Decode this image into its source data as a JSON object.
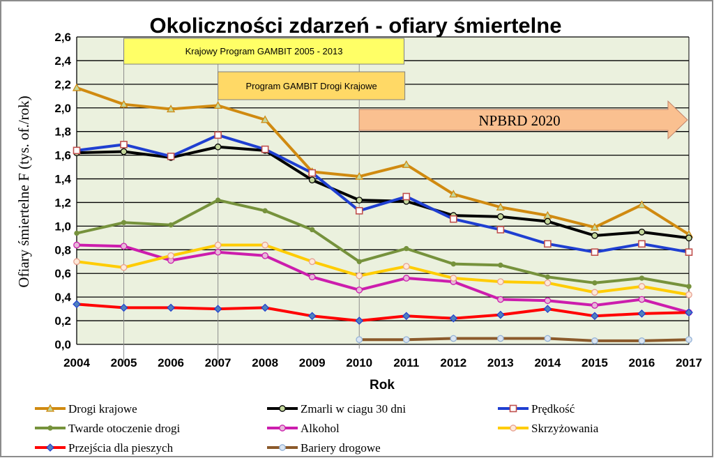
{
  "chart_data": {
    "type": "line",
    "title": "Okoliczności zdarzeń - ofiary śmiertelne",
    "xlabel": "Rok",
    "ylabel": "Ofiary śmiertelne F (tys. of./rok)",
    "ylim": [
      0,
      2.6
    ],
    "ytick_step": 0.2,
    "y_tick_labels": [
      "0,0",
      "0,2",
      "0,4",
      "0,6",
      "0,8",
      "1,0",
      "1,2",
      "1,4",
      "1,6",
      "1,8",
      "2,0",
      "2,2",
      "2,4",
      "2,6"
    ],
    "categories": [
      "2004",
      "2005",
      "2006",
      "2007",
      "2008",
      "2009",
      "2010",
      "2011",
      "2012",
      "2013",
      "2014",
      "2015",
      "2016",
      "2017"
    ],
    "grid": true,
    "legend_position": "bottom",
    "annotations": [
      {
        "text": "Krajowy Program GAMBIT 2005 - 2013",
        "from_year": "2005",
        "to_year": "2013",
        "color": "#ffff66"
      },
      {
        "text": "Program GAMBIT Drogi Krajowe",
        "from_year": "2007",
        "to_year": "2011",
        "color": "#ffd966"
      },
      {
        "text": "NPBRD 2020",
        "from_year": "2010",
        "to_year": "2017",
        "color": "#fac090"
      }
    ],
    "series": [
      {
        "name": "Drogi krajowe",
        "color": "#d08a10",
        "marker": "triangle",
        "marker_fill": "#c4d79b",
        "values": [
          2.17,
          2.03,
          1.99,
          2.02,
          1.9,
          1.46,
          1.42,
          1.52,
          1.27,
          1.16,
          1.09,
          0.99,
          1.18,
          0.93
        ]
      },
      {
        "name": "Zmarli w ciagu 30 dni",
        "color": "#000000",
        "marker": "circle",
        "marker_fill": "#c4d79b",
        "values": [
          1.62,
          1.63,
          1.58,
          1.67,
          1.64,
          1.39,
          1.22,
          1.21,
          1.09,
          1.08,
          1.04,
          0.92,
          0.95,
          0.9
        ]
      },
      {
        "name": "Prędkość",
        "color": "#1f3fd1",
        "marker": "square",
        "marker_fill": "#ffffff",
        "marker_stroke": "#c0504d",
        "values": [
          1.64,
          1.69,
          1.59,
          1.77,
          1.65,
          1.45,
          1.13,
          1.25,
          1.06,
          0.97,
          0.85,
          0.78,
          0.85,
          0.78
        ]
      },
      {
        "name": "Twarde otoczenie drogi",
        "color": "#76923c",
        "marker": "dot",
        "marker_fill": "#76923c",
        "values": [
          0.94,
          1.03,
          1.01,
          1.22,
          1.13,
          0.97,
          0.7,
          0.81,
          0.68,
          0.67,
          0.57,
          0.52,
          0.56,
          0.49
        ]
      },
      {
        "name": "Alkohol",
        "color": "#cc1dad",
        "marker": "circle",
        "marker_fill": "#e6b9d8",
        "values": [
          0.84,
          0.83,
          0.71,
          0.78,
          0.75,
          0.57,
          0.46,
          0.56,
          0.53,
          0.38,
          0.37,
          0.33,
          0.38,
          0.27
        ]
      },
      {
        "name": "Skrzyżowania",
        "color": "#ffcc00",
        "marker": "circle",
        "marker_fill": "#fde9d9",
        "marker_stroke": "#e8a090",
        "values": [
          0.7,
          0.65,
          0.75,
          0.84,
          0.84,
          0.7,
          0.58,
          0.66,
          0.56,
          0.53,
          0.52,
          0.44,
          0.49,
          0.42
        ]
      },
      {
        "name": "Przejścia dla pieszych",
        "color": "#ff0000",
        "marker": "diamond",
        "marker_fill": "#4f81bd",
        "values": [
          0.34,
          0.31,
          0.31,
          0.3,
          0.31,
          0.24,
          0.2,
          0.24,
          0.22,
          0.25,
          0.3,
          0.24,
          0.26,
          0.27
        ]
      },
      {
        "name": "Bariery drogowe",
        "color": "#8b5a2b",
        "marker": "circle",
        "marker_fill": "#dbe5f1",
        "marker_stroke": "#95b3d7",
        "values": [
          null,
          null,
          null,
          null,
          null,
          null,
          0.04,
          0.04,
          0.05,
          0.05,
          0.05,
          0.03,
          0.03,
          0.04
        ]
      }
    ]
  }
}
